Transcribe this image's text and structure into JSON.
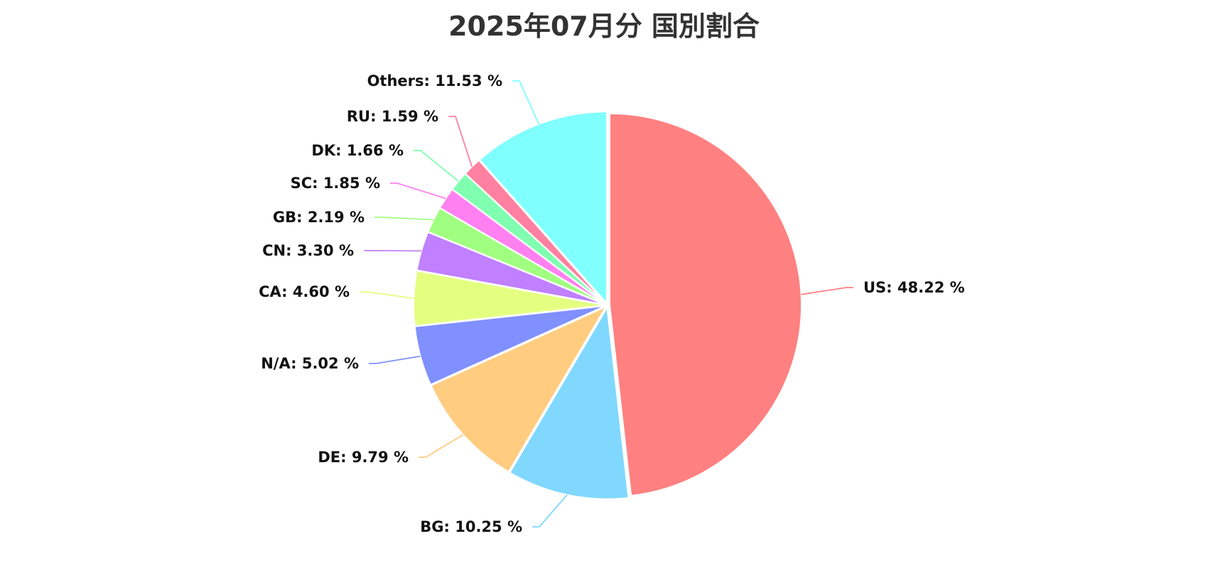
{
  "chart_data": {
    "type": "pie",
    "title": "2025年07月分 国別割合",
    "slices": [
      {
        "label": "US",
        "value": 48.22,
        "display": "US: 48.22 %",
        "color": "#ff8080"
      },
      {
        "label": "BG",
        "value": 10.25,
        "display": "BG: 10.25 %",
        "color": "#80d8ff"
      },
      {
        "label": "DE",
        "value": 9.79,
        "display": "DE: 9.79 %",
        "color": "#ffcc80"
      },
      {
        "label": "N/A",
        "value": 5.02,
        "display": "N/A: 5.02 %",
        "color": "#8090ff"
      },
      {
        "label": "CA",
        "value": 4.6,
        "display": "CA: 4.60 %",
        "color": "#e4ff80"
      },
      {
        "label": "CN",
        "value": 3.3,
        "display": "CN: 3.30 %",
        "color": "#c080ff"
      },
      {
        "label": "GB",
        "value": 2.19,
        "display": "GB: 2.19 %",
        "color": "#a0ff80"
      },
      {
        "label": "SC",
        "value": 1.85,
        "display": "SC: 1.85 %",
        "color": "#ff80f0"
      },
      {
        "label": "DK",
        "value": 1.66,
        "display": "DK: 1.66 %",
        "color": "#80ffb0"
      },
      {
        "label": "RU",
        "value": 1.59,
        "display": "RU: 1.59 %",
        "color": "#ff80a0"
      },
      {
        "label": "Others",
        "value": 11.53,
        "display": "Others: 11.53 %",
        "color": "#80ffff"
      }
    ],
    "start_angle": "12 o'clock",
    "direction": "clockwise",
    "legend": "none",
    "labels": "outside with leader lines"
  }
}
